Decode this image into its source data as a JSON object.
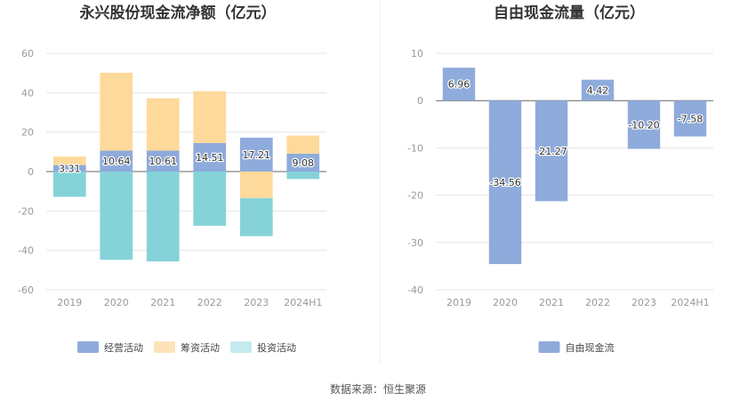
{
  "colors": {
    "operating": "#8eabdb",
    "financing": "#fdd99b",
    "investing": "#85d3d9",
    "free": "#8eabdb",
    "grid": "#e6e6e6",
    "axis": "#666666",
    "divider": "#eeeeee"
  },
  "source_text": "数据来源：恒生聚源",
  "chart_data": [
    {
      "type": "bar",
      "stacked": true,
      "title": "永兴股份现金流净额（亿元）",
      "categories": [
        "2019",
        "2020",
        "2021",
        "2022",
        "2023",
        "2024H1"
      ],
      "ylim": [
        -60,
        60
      ],
      "yticks": [
        60,
        40,
        20,
        0,
        -20,
        -40,
        -60
      ],
      "legend_position": "bottom",
      "grid": true,
      "series": [
        {
          "name": "经营活动",
          "color_key": "operating",
          "values": [
            3.31,
            10.64,
            10.61,
            14.51,
            17.21,
            9.08
          ],
          "labels": [
            "3.31",
            "10.64",
            "10.61",
            "14.51",
            "17.21",
            "9.08"
          ]
        },
        {
          "name": "筹资活动",
          "color_key": "financing",
          "values": [
            4.3,
            39.5,
            26.6,
            26.3,
            -13.5,
            9.2
          ]
        },
        {
          "name": "投资活动",
          "color_key": "investing",
          "values": [
            -12.8,
            -44.8,
            -45.6,
            -27.5,
            -19.3,
            -3.8
          ]
        }
      ]
    },
    {
      "type": "bar",
      "title": "自由现金流量（亿元）",
      "categories": [
        "2019",
        "2020",
        "2021",
        "2022",
        "2023",
        "2024H1"
      ],
      "ylim": [
        -40,
        10
      ],
      "yticks": [
        10,
        0,
        -10,
        -20,
        -30,
        -40
      ],
      "legend_position": "bottom",
      "grid": true,
      "series": [
        {
          "name": "自由现金流",
          "color_key": "free",
          "values": [
            6.96,
            -34.56,
            -21.27,
            4.42,
            -10.2,
            -7.58
          ],
          "labels": [
            "6.96",
            "-34.56",
            "-21.27",
            "4.42",
            "-10.20",
            "-7.58"
          ]
        }
      ]
    }
  ]
}
